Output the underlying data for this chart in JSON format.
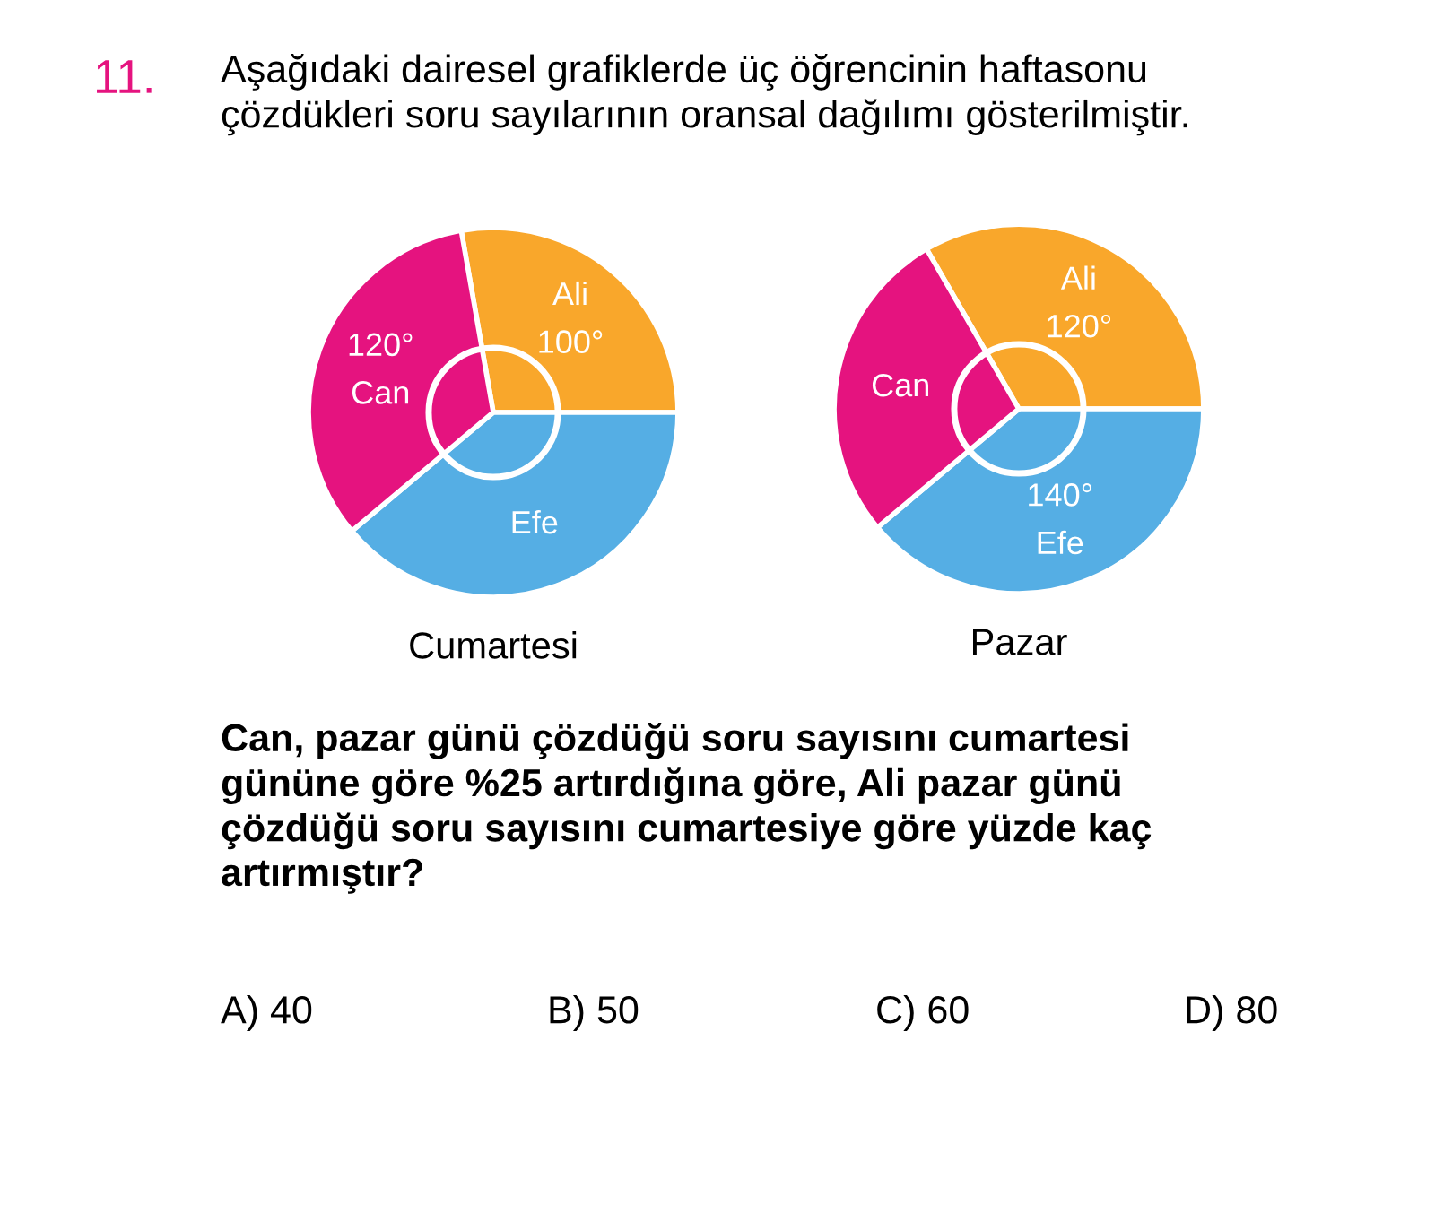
{
  "chart_data": [
    {
      "type": "pie",
      "title": "Cumartesi",
      "categories": [
        "Ali",
        "Efe",
        "Can"
      ],
      "values": [
        100,
        140,
        120
      ],
      "colors": [
        "#f9a72b",
        "#55aee4",
        "#e5137f"
      ],
      "value_labels": [
        "100°",
        null,
        "120°"
      ],
      "annotations": [
        "11.",
        "Aşağıdaki dairesel grafiklerde üç öğrencinin haftasonu\nçözdükleri soru sayılarının oransal dağılımı gösterilmiştir.",
        "Can, pazar günü çözdüğü soru sayısını cumartesi\ngününe göre %25 artırdığına göre, Ali pazar günü\nçözdüğü soru sayısını cumartesiye göre yüzde kaç\nartırmıştır?",
        "A) 40",
        "B) 50",
        "C) 60",
        "D) 80"
      ]
    },
    {
      "type": "pie",
      "title": "Pazar",
      "categories": [
        "Ali",
        "Efe",
        "Can"
      ],
      "values": [
        120,
        140,
        100
      ],
      "colors": [
        "#f9a72b",
        "#55aee4",
        "#e5137f"
      ],
      "value_labels": [
        "120°",
        "140°",
        null
      ]
    }
  ]
}
